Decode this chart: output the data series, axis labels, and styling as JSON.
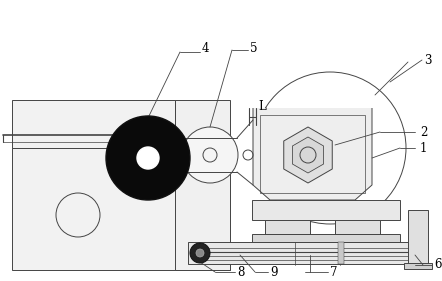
{
  "fig_width": 4.42,
  "fig_height": 2.81,
  "dpi": 100,
  "bg_color": "#ffffff",
  "lc": "#444444",
  "dc": "#111111",
  "lw": 0.7
}
